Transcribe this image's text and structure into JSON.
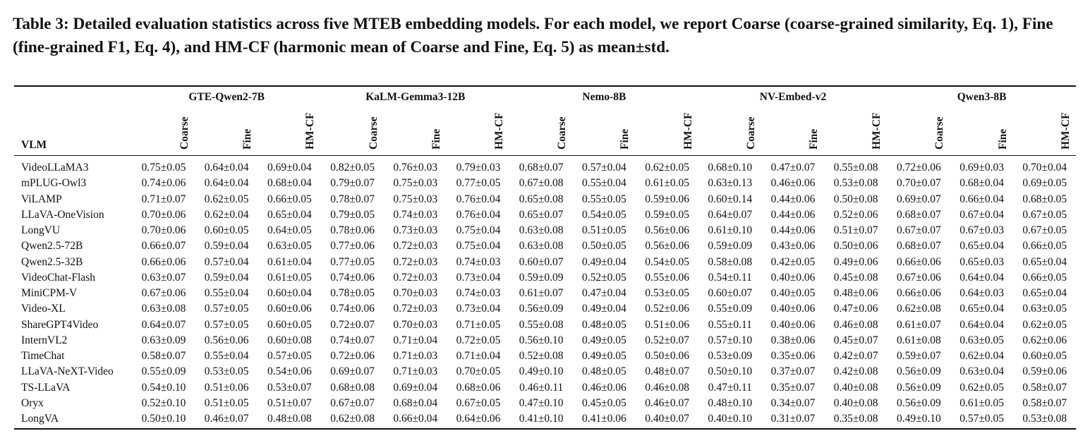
{
  "caption": "Table 3: Detailed evaluation statistics across five MTEB embedding models. For each model, we report Coarse (coarse-grained similarity, Eq. 1), Fine (fine-grained F1, Eq. 4), and HM-CF (harmonic mean of Coarse and Fine, Eq. 5) as mean±std.",
  "table": {
    "row_header": "VLM",
    "groups": [
      "GTE-Qwen2-7B",
      "KaLM-Gemma3-12B",
      "Nemo-8B",
      "NV-Embed-v2",
      "Qwen3-8B"
    ],
    "metrics": [
      "Coarse",
      "Fine",
      "HM-CF"
    ],
    "rows": [
      {
        "vlm": "VideoLLaMA3",
        "cells": [
          "0.75±0.05",
          "0.64±0.04",
          "0.69±0.04",
          "0.82±0.05",
          "0.76±0.03",
          "0.79±0.03",
          "0.68±0.07",
          "0.57±0.04",
          "0.62±0.05",
          "0.68±0.10",
          "0.47±0.07",
          "0.55±0.08",
          "0.72±0.06",
          "0.69±0.03",
          "0.70±0.04"
        ]
      },
      {
        "vlm": "mPLUG-Owl3",
        "cells": [
          "0.74±0.06",
          "0.64±0.04",
          "0.68±0.04",
          "0.79±0.07",
          "0.75±0.03",
          "0.77±0.05",
          "0.67±0.08",
          "0.55±0.04",
          "0.61±0.05",
          "0.63±0.13",
          "0.46±0.06",
          "0.53±0.08",
          "0.70±0.07",
          "0.68±0.04",
          "0.69±0.05"
        ]
      },
      {
        "vlm": "ViLAMP",
        "cells": [
          "0.71±0.07",
          "0.62±0.05",
          "0.66±0.05",
          "0.78±0.07",
          "0.75±0.03",
          "0.76±0.04",
          "0.65±0.08",
          "0.55±0.05",
          "0.59±0.06",
          "0.60±0.14",
          "0.44±0.06",
          "0.50±0.08",
          "0.69±0.07",
          "0.66±0.04",
          "0.68±0.05"
        ]
      },
      {
        "vlm": "LLaVA-OneVision",
        "cells": [
          "0.70±0.06",
          "0.62±0.04",
          "0.65±0.04",
          "0.79±0.05",
          "0.74±0.03",
          "0.76±0.04",
          "0.65±0.07",
          "0.54±0.05",
          "0.59±0.05",
          "0.64±0.07",
          "0.44±0.06",
          "0.52±0.06",
          "0.68±0.07",
          "0.67±0.04",
          "0.67±0.05"
        ]
      },
      {
        "vlm": "LongVU",
        "cells": [
          "0.70±0.06",
          "0.60±0.05",
          "0.64±0.05",
          "0.78±0.06",
          "0.73±0.03",
          "0.75±0.04",
          "0.63±0.08",
          "0.51±0.05",
          "0.56±0.06",
          "0.61±0.10",
          "0.44±0.06",
          "0.51±0.07",
          "0.67±0.07",
          "0.67±0.03",
          "0.67±0.05"
        ]
      },
      {
        "vlm": "Qwen2.5-72B",
        "cells": [
          "0.66±0.07",
          "0.59±0.04",
          "0.63±0.05",
          "0.77±0.06",
          "0.72±0.03",
          "0.75±0.04",
          "0.63±0.08",
          "0.50±0.05",
          "0.56±0.06",
          "0.59±0.09",
          "0.43±0.06",
          "0.50±0.06",
          "0.68±0.07",
          "0.65±0.04",
          "0.66±0.05"
        ]
      },
      {
        "vlm": "Qwen2.5-32B",
        "cells": [
          "0.66±0.06",
          "0.57±0.04",
          "0.61±0.04",
          "0.77±0.05",
          "0.72±0.03",
          "0.74±0.03",
          "0.60±0.07",
          "0.49±0.04",
          "0.54±0.05",
          "0.58±0.08",
          "0.42±0.05",
          "0.49±0.06",
          "0.66±0.06",
          "0.65±0.03",
          "0.65±0.04"
        ]
      },
      {
        "vlm": "VideoChat-Flash",
        "cells": [
          "0.63±0.07",
          "0.59±0.04",
          "0.61±0.05",
          "0.74±0.06",
          "0.72±0.03",
          "0.73±0.04",
          "0.59±0.09",
          "0.52±0.05",
          "0.55±0.06",
          "0.54±0.11",
          "0.40±0.06",
          "0.45±0.08",
          "0.67±0.06",
          "0.64±0.04",
          "0.66±0.05"
        ]
      },
      {
        "vlm": "MiniCPM-V",
        "cells": [
          "0.67±0.06",
          "0.55±0.04",
          "0.60±0.04",
          "0.78±0.05",
          "0.70±0.03",
          "0.74±0.03",
          "0.61±0.07",
          "0.47±0.04",
          "0.53±0.05",
          "0.60±0.07",
          "0.40±0.05",
          "0.48±0.06",
          "0.66±0.06",
          "0.64±0.03",
          "0.65±0.04"
        ]
      },
      {
        "vlm": "Video-XL",
        "cells": [
          "0.63±0.08",
          "0.57±0.05",
          "0.60±0.06",
          "0.74±0.06",
          "0.72±0.03",
          "0.73±0.04",
          "0.56±0.09",
          "0.49±0.04",
          "0.52±0.06",
          "0.55±0.09",
          "0.40±0.06",
          "0.47±0.06",
          "0.62±0.08",
          "0.65±0.04",
          "0.63±0.05"
        ]
      },
      {
        "vlm": "ShareGPT4Video",
        "cells": [
          "0.64±0.07",
          "0.57±0.05",
          "0.60±0.05",
          "0.72±0.07",
          "0.70±0.03",
          "0.71±0.05",
          "0.55±0.08",
          "0.48±0.05",
          "0.51±0.06",
          "0.55±0.11",
          "0.40±0.06",
          "0.46±0.08",
          "0.61±0.07",
          "0.64±0.04",
          "0.62±0.05"
        ]
      },
      {
        "vlm": "InternVL2",
        "cells": [
          "0.63±0.09",
          "0.56±0.06",
          "0.60±0.08",
          "0.74±0.07",
          "0.71±0.04",
          "0.72±0.05",
          "0.56±0.10",
          "0.49±0.05",
          "0.52±0.07",
          "0.57±0.10",
          "0.38±0.06",
          "0.45±0.07",
          "0.61±0.08",
          "0.63±0.05",
          "0.62±0.06"
        ]
      },
      {
        "vlm": "TimeChat",
        "cells": [
          "0.58±0.07",
          "0.55±0.04",
          "0.57±0.05",
          "0.72±0.06",
          "0.71±0.03",
          "0.71±0.04",
          "0.52±0.08",
          "0.49±0.05",
          "0.50±0.06",
          "0.53±0.09",
          "0.35±0.06",
          "0.42±0.07",
          "0.59±0.07",
          "0.62±0.04",
          "0.60±0.05"
        ]
      },
      {
        "vlm": "LLaVA-NeXT-Video",
        "cells": [
          "0.55±0.09",
          "0.53±0.05",
          "0.54±0.06",
          "0.69±0.07",
          "0.71±0.03",
          "0.70±0.05",
          "0.49±0.10",
          "0.48±0.05",
          "0.48±0.07",
          "0.50±0.10",
          "0.37±0.07",
          "0.42±0.08",
          "0.56±0.09",
          "0.63±0.04",
          "0.59±0.06"
        ]
      },
      {
        "vlm": "TS-LLaVA",
        "cells": [
          "0.54±0.10",
          "0.51±0.06",
          "0.53±0.07",
          "0.68±0.08",
          "0.69±0.04",
          "0.68±0.06",
          "0.46±0.11",
          "0.46±0.06",
          "0.46±0.08",
          "0.47±0.11",
          "0.35±0.07",
          "0.40±0.08",
          "0.56±0.09",
          "0.62±0.05",
          "0.58±0.07"
        ]
      },
      {
        "vlm": "Oryx",
        "cells": [
          "0.52±0.10",
          "0.51±0.05",
          "0.51±0.07",
          "0.67±0.07",
          "0.68±0.04",
          "0.67±0.05",
          "0.47±0.10",
          "0.45±0.05",
          "0.46±0.07",
          "0.48±0.10",
          "0.34±0.07",
          "0.40±0.08",
          "0.56±0.09",
          "0.61±0.05",
          "0.58±0.07"
        ]
      },
      {
        "vlm": "LongVA",
        "cells": [
          "0.50±0.10",
          "0.46±0.07",
          "0.48±0.08",
          "0.62±0.08",
          "0.66±0.04",
          "0.64±0.06",
          "0.41±0.10",
          "0.41±0.06",
          "0.40±0.07",
          "0.40±0.10",
          "0.31±0.07",
          "0.35±0.08",
          "0.49±0.10",
          "0.57±0.05",
          "0.53±0.08"
        ]
      }
    ]
  }
}
